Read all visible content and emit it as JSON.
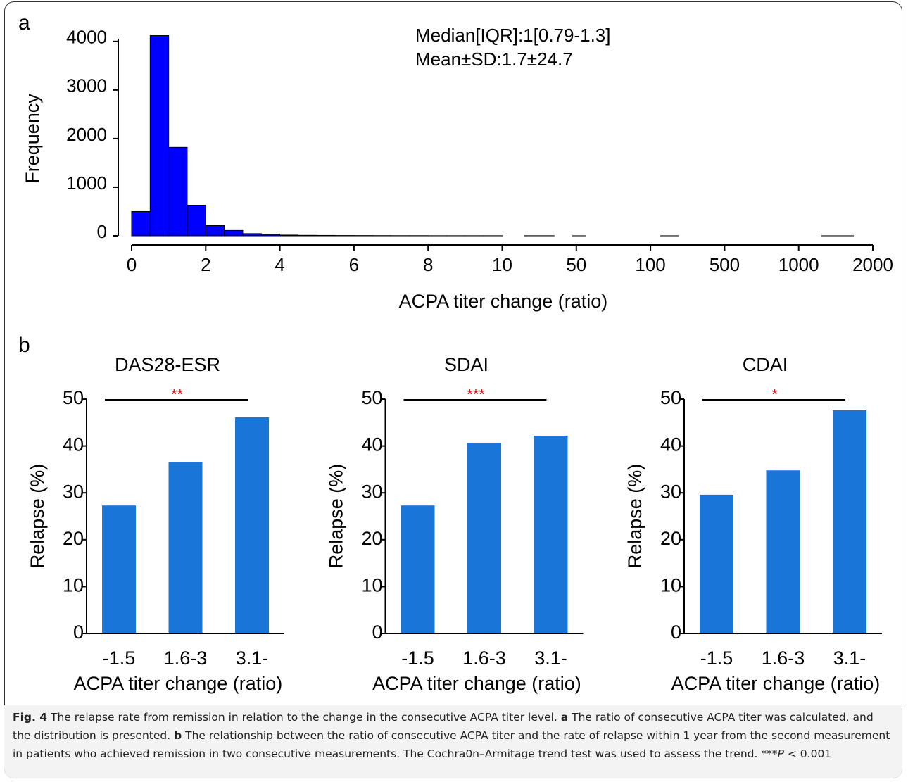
{
  "panels": [
    "a",
    "b"
  ],
  "chart_data": [
    {
      "type": "histogram",
      "xlabel": "ACPA titer change (ratio)",
      "ylabel": "Frequency",
      "annotations": [
        "Median[IQR]:1[0.79-1.3]",
        "Mean±SD:1.7±24.7"
      ],
      "bins": [
        0,
        0.5,
        1,
        1.5,
        2,
        2.5,
        3,
        3.5,
        4,
        4.5,
        5,
        5.5,
        6,
        6.5,
        7,
        7.5,
        8,
        8.5,
        9,
        9.5,
        10,
        22,
        38,
        48,
        56,
        155,
        250,
        1310,
        1740
      ],
      "values": [
        500,
        4120,
        1820,
        630,
        210,
        110,
        45,
        30,
        15,
        10,
        8,
        6,
        5,
        4,
        3,
        3,
        2,
        2,
        2,
        2,
        0,
        2,
        0,
        1,
        0,
        1,
        0,
        1
      ],
      "color": "#0000ff",
      "edgecolor": "#000000",
      "xlim": [
        0,
        2000
      ],
      "xticks": [
        0,
        2,
        4,
        6,
        8,
        10,
        50,
        100,
        500,
        1000,
        2000
      ],
      "xscale": "tick-spaced",
      "ylim": [
        0,
        4200
      ],
      "yticks": [
        0,
        1000,
        2000,
        3000,
        4000
      ]
    },
    {
      "type": "bar",
      "title": "DAS28-ESR",
      "xlabel": "ACPA titer change (ratio)",
      "ylabel": "Relapse (%)",
      "categories": [
        "-1.5",
        "1.6-3",
        "3.1-"
      ],
      "values": [
        27.3,
        36.6,
        46.1
      ],
      "color": "#1a75d9",
      "significance": "**",
      "significance_color": "#e8141b",
      "ylim": [
        0,
        50
      ],
      "yticks": [
        0,
        10,
        20,
        30,
        40,
        50
      ]
    },
    {
      "type": "bar",
      "title": "SDAI",
      "xlabel": "ACPA titer change (ratio)",
      "ylabel": "Relapse (%)",
      "categories": [
        "-1.5",
        "1.6-3",
        "3.1-"
      ],
      "values": [
        27.3,
        40.7,
        42.2
      ],
      "color": "#1a75d9",
      "significance": "***",
      "significance_color": "#e8141b",
      "ylim": [
        0,
        50
      ],
      "yticks": [
        0,
        10,
        20,
        30,
        40,
        50
      ]
    },
    {
      "type": "bar",
      "title": "CDAI",
      "xlabel": "ACPA titer change (ratio)",
      "ylabel": "Relapse (%)",
      "categories": [
        "-1.5",
        "1.6-3",
        "3.1-"
      ],
      "values": [
        29.6,
        34.8,
        47.6
      ],
      "color": "#1a75d9",
      "significance": "*",
      "significance_color": "#e8141b",
      "ylim": [
        0,
        50
      ],
      "yticks": [
        0,
        10,
        20,
        30,
        40,
        50
      ]
    }
  ],
  "caption": [
    {
      "text": "Fig. 4",
      "style": "bold"
    },
    {
      "text": " The relapse rate from remission in relation to the change in the consecutive ACPA titer level. ",
      "style": "normal"
    },
    {
      "text": "a",
      "style": "bold"
    },
    {
      "text": " The ratio of consecutive ACPA titer was calculated, and the distribution is presented. ",
      "style": "normal"
    },
    {
      "text": "b",
      "style": "bold"
    },
    {
      "text": " The relationship between the ratio of consecutive ACPA titer and the rate of relapse within 1 year from the second measurement in patients who achieved remission in two consecutive measurements. The Cochra0n–Armitage trend test was used to assess the trend. ***",
      "style": "normal"
    },
    {
      "text": "P",
      "style": "italic"
    },
    {
      "text": " < 0.001",
      "style": "normal"
    }
  ]
}
